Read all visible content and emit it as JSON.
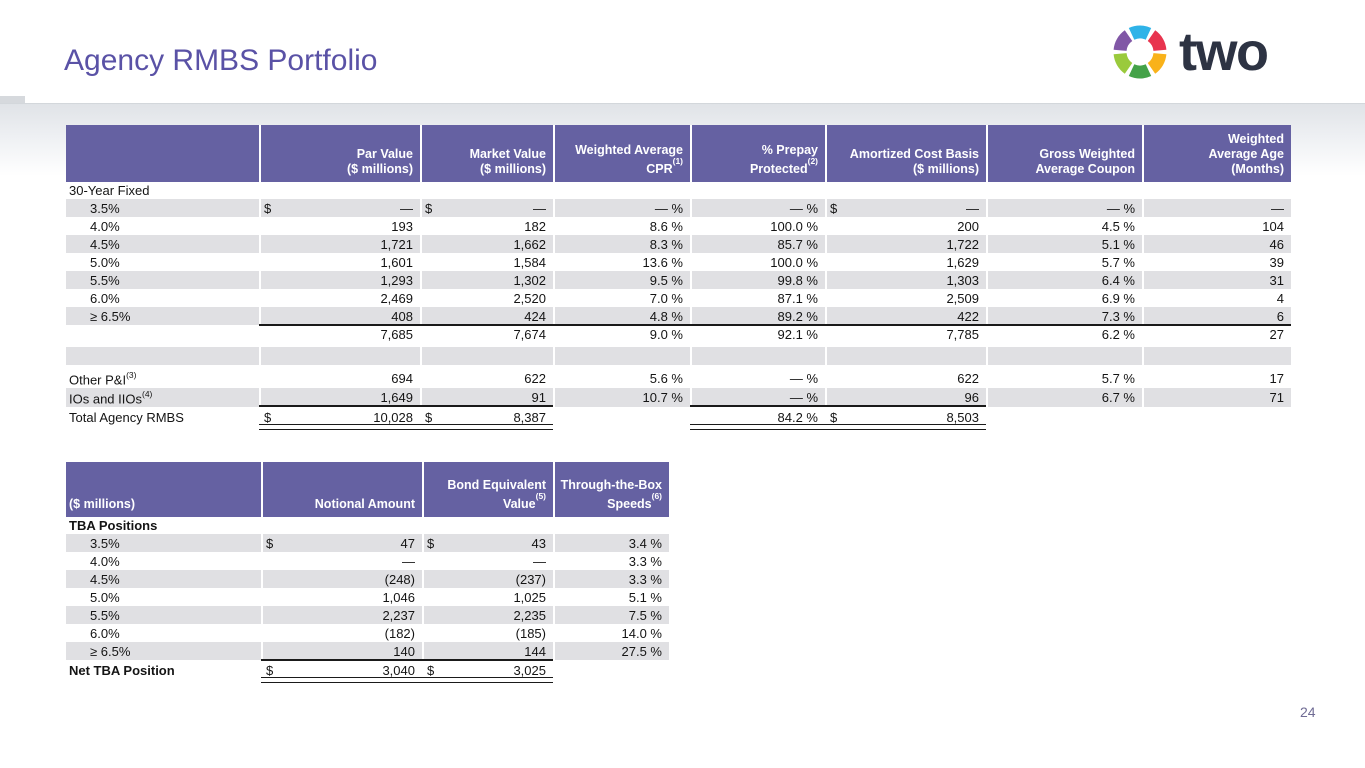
{
  "slide": {
    "title": "Agency RMBS Portfolio",
    "page_number": "24"
  },
  "logo": {
    "text": "two",
    "segment_colors": [
      "#2fb3e8",
      "#e8344e",
      "#f9b21a",
      "#44a248",
      "#9aca3c",
      "#8157a6"
    ]
  },
  "colors": {
    "header_bg": "#6561a2",
    "stripe": "#e0e0e3",
    "title_col": "#5a52a6",
    "rule": "#1a1a1a",
    "logo_navy": "#2d3343",
    "pagenum": "#6f6b94"
  },
  "table1": {
    "headers": [
      {
        "l1": "",
        "l2": ""
      },
      {
        "l1": "Par Value",
        "l2": "($ millions)"
      },
      {
        "l1": "Market Value",
        "l2": "($ millions)"
      },
      {
        "l1": "Weighted Average",
        "l2": "CPR",
        "sup": "(1)"
      },
      {
        "l1": "% Prepay",
        "l2": "Protected",
        "sup": "(2)"
      },
      {
        "l1": "Amortized Cost Basis",
        "l2": "($ millions)"
      },
      {
        "l1": "Gross Weighted",
        "l2": "Average Coupon"
      },
      {
        "l0": "Weighted",
        "l1": "Average Age",
        "l2": "(Months)"
      }
    ],
    "rows": [
      {
        "cls": "sec",
        "label": "30-Year Fixed",
        "colspan": 8
      },
      {
        "cls": "stripe",
        "indent": true,
        "label": "3.5%",
        "cells": [
          {
            "p": "$",
            "v": "—"
          },
          {
            "p": "$",
            "v": "—"
          },
          "— %",
          "— %",
          {
            "p": "$",
            "v": "—"
          },
          "— %",
          "—"
        ]
      },
      {
        "indent": true,
        "label": "4.0%",
        "cells": [
          "193",
          "182",
          "8.6 %",
          "100.0 %",
          "200",
          "4.5 %",
          "104"
        ]
      },
      {
        "cls": "stripe",
        "indent": true,
        "label": "4.5%",
        "cells": [
          "1,721",
          "1,662",
          "8.3 %",
          "85.7 %",
          "1,722",
          "5.1 %",
          "46"
        ]
      },
      {
        "indent": true,
        "label": "5.0%",
        "cells": [
          "1,601",
          "1,584",
          "13.6 %",
          "100.0 %",
          "1,629",
          "5.7 %",
          "39"
        ]
      },
      {
        "cls": "stripe",
        "indent": true,
        "label": "5.5%",
        "cells": [
          "1,293",
          "1,302",
          "9.5 %",
          "99.8 %",
          "1,303",
          "6.4 %",
          "31"
        ]
      },
      {
        "indent": true,
        "label": "6.0%",
        "cells": [
          "2,469",
          "2,520",
          "7.0 %",
          "87.1 %",
          "2,509",
          "6.9 %",
          "4"
        ]
      },
      {
        "cls": "stripe",
        "indent": true,
        "label": "≥ 6.5%",
        "cells": [
          "408",
          "424",
          "4.8 %",
          "89.2 %",
          "422",
          "7.3 %",
          "6"
        ]
      },
      {
        "cls": "sub",
        "label": "",
        "cells": [
          "7,685",
          "7,674",
          "9.0 %",
          "92.1 %",
          "7,785",
          "6.2 %",
          "27"
        ]
      },
      {
        "cls": "spc",
        "label": "",
        "cells": [
          "",
          "",
          "",
          "",
          "",
          "",
          ""
        ]
      },
      {
        "cls": "tall",
        "label": "Other P&I",
        "sup": "(3)",
        "cells": [
          "694",
          "622",
          "5.6 %",
          "— %",
          "622",
          "5.7 %",
          "17"
        ]
      },
      {
        "cls": "tall stripe",
        "label": "IOs and IIOs",
        "sup": "(4)",
        "cells": [
          "1,649",
          "91",
          "10.7 %",
          "— %",
          "96",
          "6.7 %",
          "71"
        ]
      },
      {
        "cls": "tot",
        "label": "Total Agency RMBS",
        "cells": [
          {
            "p": "$",
            "v": "10,028"
          },
          {
            "p": "$",
            "v": "8,387"
          },
          "",
          "84.2 %",
          {
            "p": "$",
            "v": "8,503"
          },
          "",
          ""
        ]
      }
    ]
  },
  "table2": {
    "headers": [
      {
        "l1": "",
        "l2": "($ millions)"
      },
      {
        "l1": "",
        "l2": "Notional Amount"
      },
      {
        "l1": "Bond Equivalent",
        "l2": "Value",
        "sup": "(5)"
      },
      {
        "l1": "Through-the-Box",
        "l2": "Speeds",
        "sup": "(6)"
      }
    ],
    "rows": [
      {
        "cls": "sec",
        "label": "TBA Positions",
        "bold": true,
        "colspan": 4
      },
      {
        "cls": "stripe",
        "indent": true,
        "label": "3.5%",
        "cells": [
          {
            "p": "$",
            "v": "47"
          },
          {
            "p": "$",
            "v": "43"
          },
          "3.4 %"
        ]
      },
      {
        "indent": true,
        "label": "4.0%",
        "cells": [
          "—",
          "—",
          "3.3 %"
        ]
      },
      {
        "cls": "stripe",
        "indent": true,
        "label": "4.5%",
        "cells": [
          "(248)",
          "(237)",
          "3.3 %"
        ]
      },
      {
        "indent": true,
        "label": "5.0%",
        "cells": [
          "1,046",
          "1,025",
          "5.1 %"
        ]
      },
      {
        "cls": "stripe",
        "indent": true,
        "label": "5.5%",
        "cells": [
          "2,237",
          "2,235",
          "7.5 %"
        ]
      },
      {
        "indent": true,
        "label": "6.0%",
        "cells": [
          "(182)",
          "(185)",
          "14.0 %"
        ]
      },
      {
        "cls": "stripe",
        "indent": true,
        "label": "≥ 6.5%",
        "cells": [
          "140",
          "144",
          "27.5 %"
        ]
      },
      {
        "cls": "tot",
        "label": "Net TBA Position",
        "bold": true,
        "cells": [
          {
            "p": "$",
            "v": "3,040"
          },
          {
            "p": "$",
            "v": "3,025"
          },
          ""
        ]
      }
    ]
  }
}
